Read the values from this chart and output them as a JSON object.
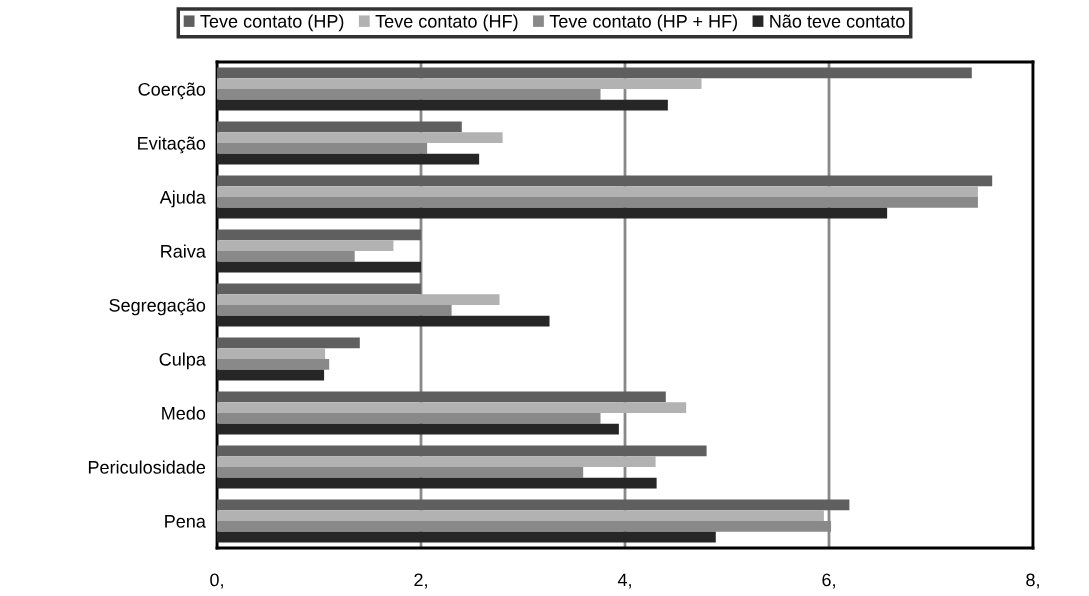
{
  "chart_data": {
    "type": "bar",
    "orientation": "horizontal",
    "categories": [
      "Coerção",
      "Evitação",
      "Ajuda",
      "Raiva",
      "Segregação",
      "Culpa",
      "Medo",
      "Periculosidade",
      "Pena"
    ],
    "series": [
      {
        "name": "Teve contato (HP)",
        "color": "#5f5f5f",
        "values": [
          7.4,
          2.4,
          7.6,
          2.0,
          2.0,
          1.4,
          4.4,
          4.8,
          6.2
        ]
      },
      {
        "name": "Teve contato (HF)",
        "color": "#b2b2b2",
        "values": [
          4.75,
          2.8,
          7.46,
          1.73,
          2.77,
          1.06,
          4.6,
          4.3,
          5.95
        ]
      },
      {
        "name": "Teve contato (HP + HF)",
        "color": "#898989",
        "values": [
          3.76,
          2.06,
          7.46,
          1.35,
          2.3,
          1.1,
          3.76,
          3.59,
          6.02
        ]
      },
      {
        "name": "Não teve contato",
        "color": "#262626",
        "values": [
          4.42,
          2.57,
          6.57,
          2.0,
          3.26,
          1.05,
          3.94,
          4.31,
          4.89
        ]
      }
    ],
    "xlim": [
      0,
      8
    ],
    "xticks": [
      {
        "value": 0,
        "label": "0,"
      },
      {
        "value": 2,
        "label": "2,"
      },
      {
        "value": 4,
        "label": "4,"
      },
      {
        "value": 6,
        "label": "6,"
      },
      {
        "value": 8,
        "label": "8,"
      }
    ],
    "grid": "x",
    "legend": "top"
  }
}
